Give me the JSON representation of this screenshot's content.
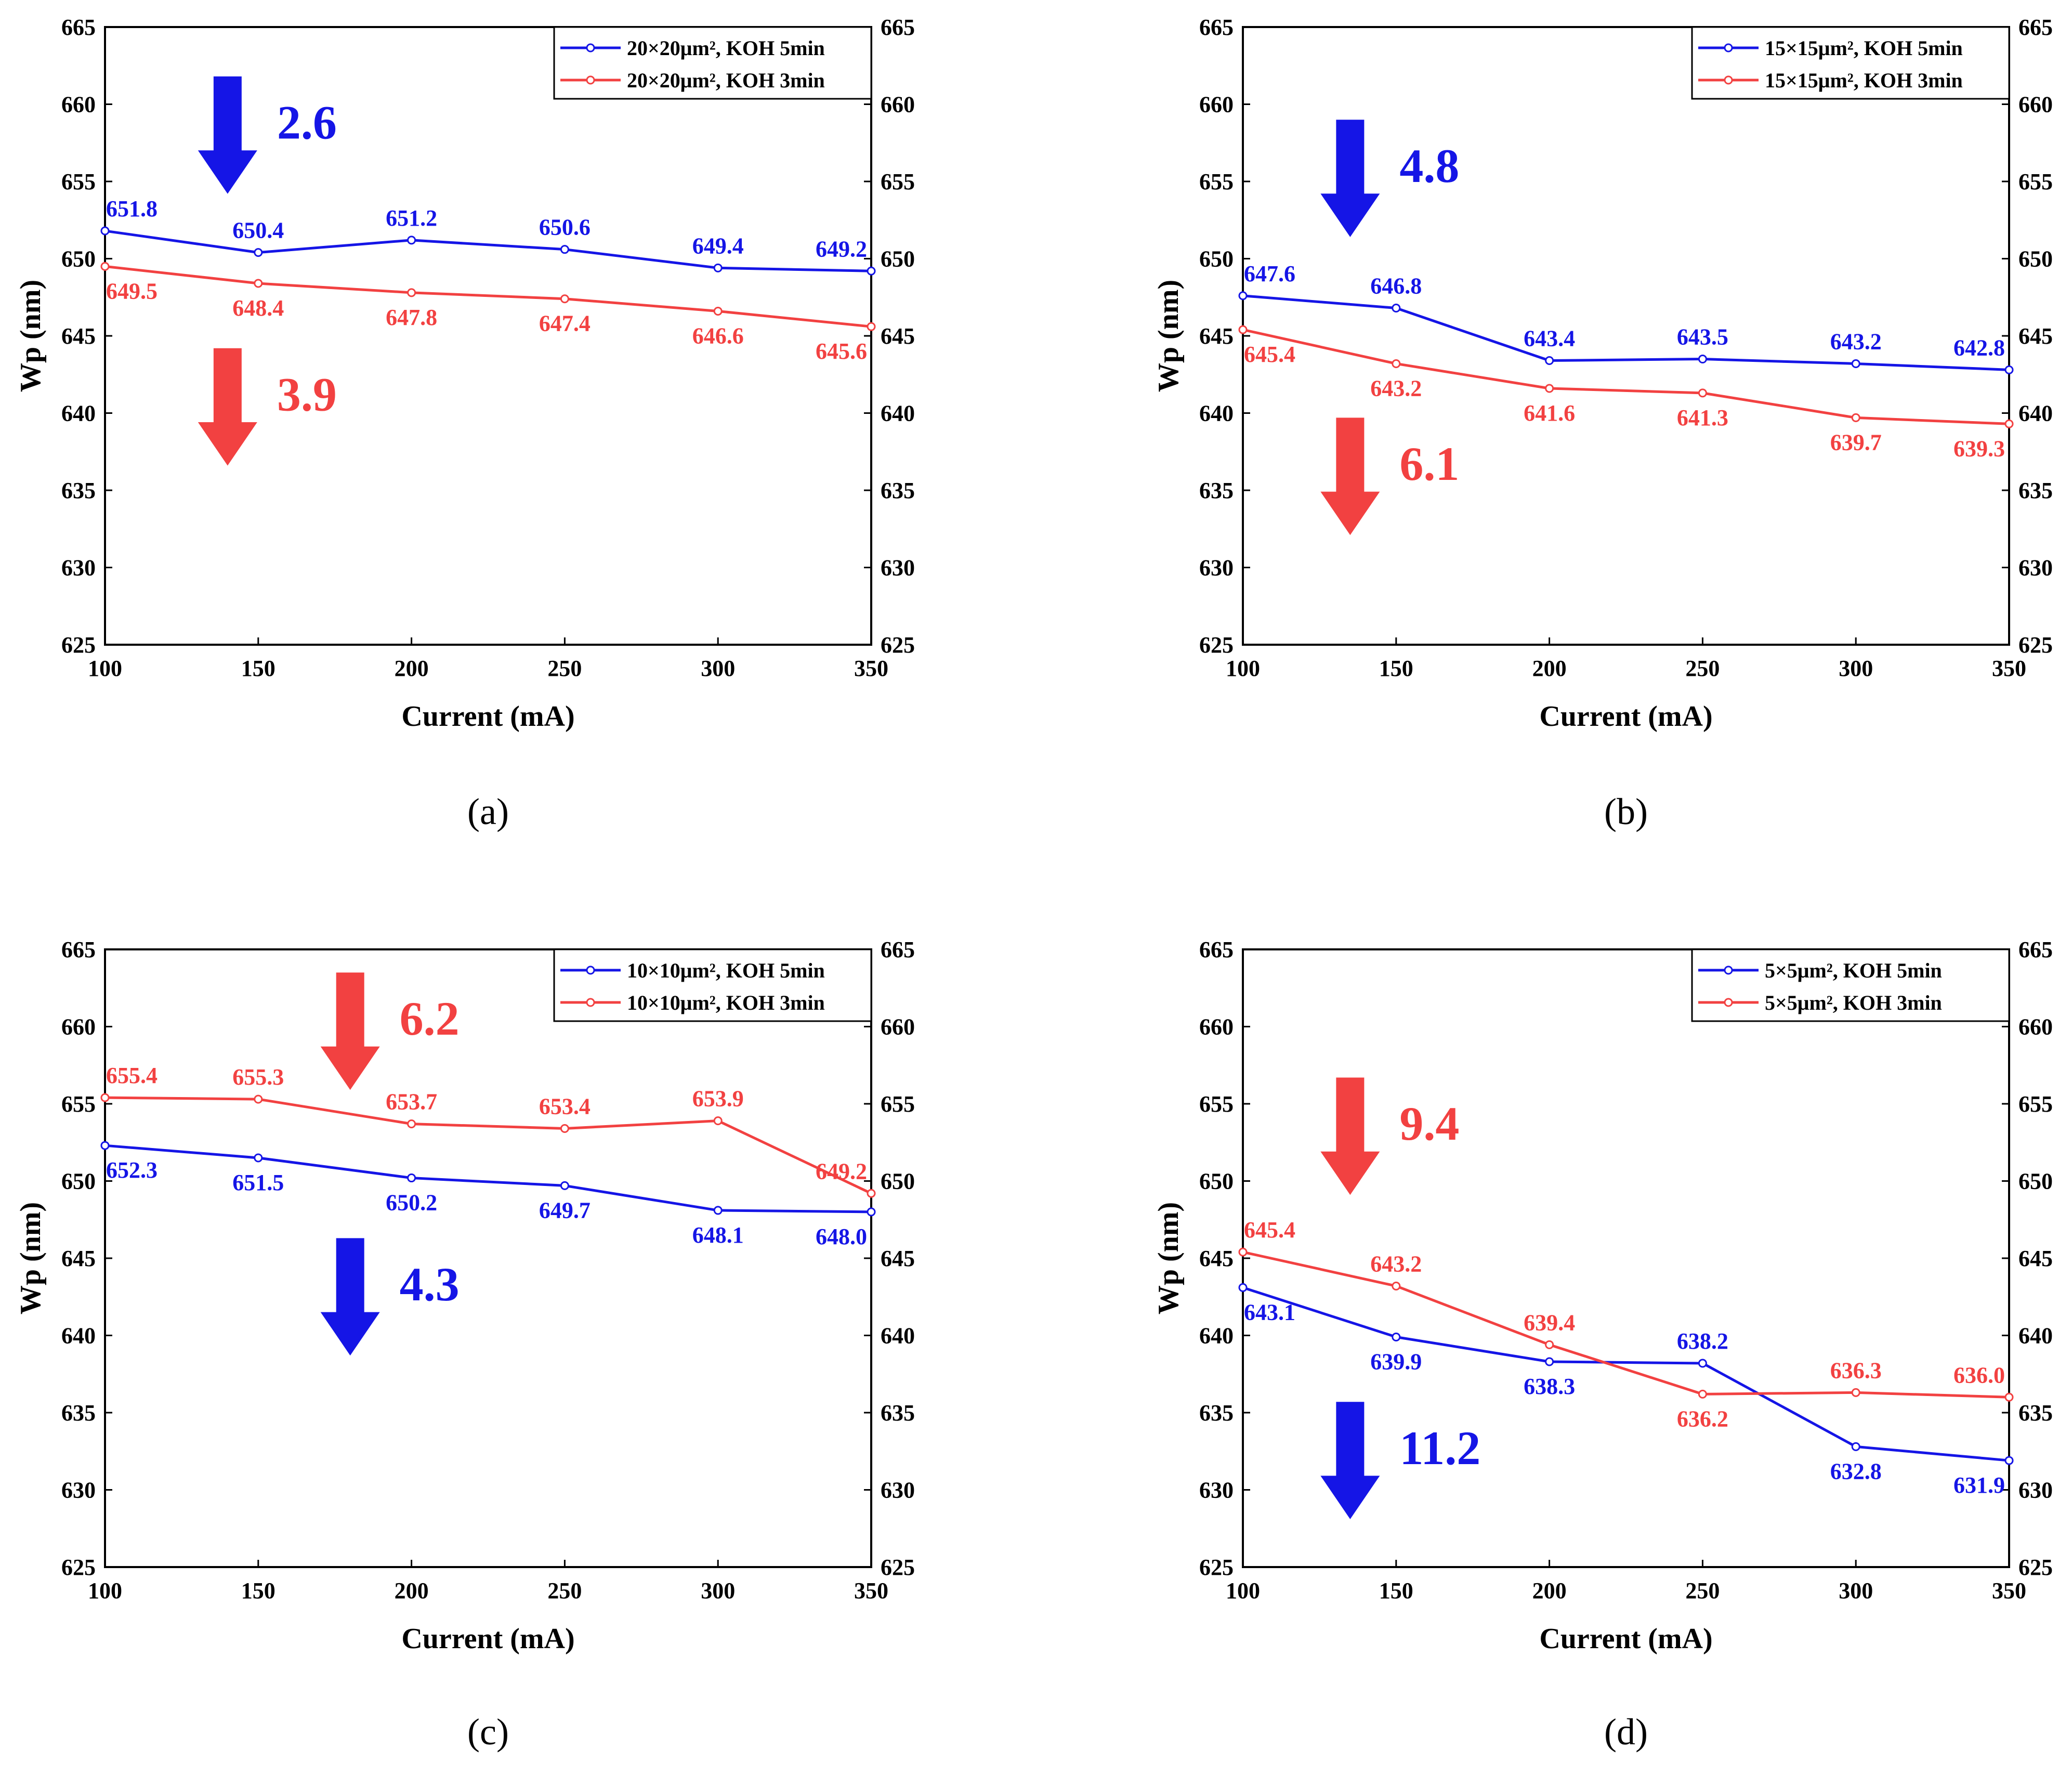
{
  "colors": {
    "blue": "#1515e6",
    "red": "#f24141",
    "axis": "#000000"
  },
  "chart_data": [
    {
      "type": "line",
      "panel_label": "(a)",
      "xlabel": "Current (mA)",
      "ylabel": "Wp (nm)",
      "xlim": [
        100,
        350
      ],
      "ylim": [
        625,
        665
      ],
      "xticks": [
        100,
        150,
        200,
        250,
        300,
        350
      ],
      "yticks": [
        625,
        630,
        635,
        640,
        645,
        650,
        655,
        660,
        665
      ],
      "legend_position": "top-right",
      "x": [
        100,
        150,
        200,
        250,
        300,
        350
      ],
      "series": [
        {
          "name": "20×20μm², KOH 5min",
          "color": "#1515e6",
          "values": [
            651.8,
            650.4,
            651.2,
            650.6,
            649.4,
            649.2
          ],
          "labels": [
            "651.8",
            "650.4",
            "651.2",
            "650.6",
            "649.4",
            "649.2"
          ],
          "label_side": "above"
        },
        {
          "name": "20×20μm², KOH 3min",
          "color": "#f24141",
          "values": [
            649.5,
            648.4,
            647.8,
            647.4,
            646.6,
            645.6
          ],
          "labels": [
            "649.5",
            "648.4",
            "647.8",
            "647.4",
            "646.6",
            "645.6"
          ],
          "label_side": "below"
        }
      ],
      "annotations": [
        {
          "text": "2.6",
          "color": "#1515e6",
          "x": 140,
          "y_top": 661.8,
          "y_bottom": 654.2
        },
        {
          "text": "3.9",
          "color": "#f24141",
          "x": 140,
          "y_top": 644.2,
          "y_bottom": 636.6
        }
      ]
    },
    {
      "type": "line",
      "panel_label": "(b)",
      "xlabel": "Current (mA)",
      "ylabel": "Wp (nm)",
      "xlim": [
        100,
        350
      ],
      "ylim": [
        625,
        665
      ],
      "xticks": [
        100,
        150,
        200,
        250,
        300,
        350
      ],
      "yticks": [
        625,
        630,
        635,
        640,
        645,
        650,
        655,
        660,
        665
      ],
      "legend_position": "top-right",
      "x": [
        100,
        150,
        200,
        250,
        300,
        350
      ],
      "series": [
        {
          "name": "15×15μm², KOH 5min",
          "color": "#1515e6",
          "values": [
            647.6,
            646.8,
            643.4,
            643.5,
            643.2,
            642.8
          ],
          "labels": [
            "647.6",
            "646.8",
            "643.4",
            "643.5",
            "643.2",
            "642.8"
          ],
          "label_side": "above"
        },
        {
          "name": "15×15μm², KOH 3min",
          "color": "#f24141",
          "values": [
            645.4,
            643.2,
            641.6,
            641.3,
            639.7,
            639.3
          ],
          "labels": [
            "645.4",
            "643.2",
            "641.6",
            "641.3",
            "639.7",
            "639.3"
          ],
          "label_side": "below"
        }
      ],
      "annotations": [
        {
          "text": "4.8",
          "color": "#1515e6",
          "x": 135,
          "y_top": 659.0,
          "y_bottom": 651.4
        },
        {
          "text": "6.1",
          "color": "#f24141",
          "x": 135,
          "y_top": 639.7,
          "y_bottom": 632.1
        }
      ]
    },
    {
      "type": "line",
      "panel_label": "(c)",
      "xlabel": "Current (mA)",
      "ylabel": "Wp (nm)",
      "xlim": [
        100,
        350
      ],
      "ylim": [
        625,
        665
      ],
      "xticks": [
        100,
        150,
        200,
        250,
        300,
        350
      ],
      "yticks": [
        625,
        630,
        635,
        640,
        645,
        650,
        655,
        660,
        665
      ],
      "legend_position": "top-right",
      "x": [
        100,
        150,
        200,
        250,
        300,
        350
      ],
      "series": [
        {
          "name": "10×10μm², KOH 5min",
          "color": "#1515e6",
          "values": [
            652.3,
            651.5,
            650.2,
            649.7,
            648.1,
            648.0
          ],
          "labels": [
            "652.3",
            "651.5",
            "650.2",
            "649.7",
            "648.1",
            "648.0"
          ],
          "label_side": "below"
        },
        {
          "name": "10×10μm², KOH 3min",
          "color": "#f24141",
          "values": [
            655.4,
            655.3,
            653.7,
            653.4,
            653.9,
            649.2
          ],
          "labels": [
            "655.4",
            "655.3",
            "653.7",
            "653.4",
            "653.9",
            "649.2"
          ],
          "label_side": "above"
        }
      ],
      "annotations": [
        {
          "text": "6.2",
          "color": "#f24141",
          "x": 180,
          "y_top": 663.5,
          "y_bottom": 655.9
        },
        {
          "text": "4.3",
          "color": "#1515e6",
          "x": 180,
          "y_top": 646.3,
          "y_bottom": 638.7
        }
      ]
    },
    {
      "type": "line",
      "panel_label": "(d)",
      "xlabel": "Current (mA)",
      "ylabel": "Wp (nm)",
      "xlim": [
        100,
        350
      ],
      "ylim": [
        625,
        665
      ],
      "xticks": [
        100,
        150,
        200,
        250,
        300,
        350
      ],
      "yticks": [
        625,
        630,
        635,
        640,
        645,
        650,
        655,
        660,
        665
      ],
      "legend_position": "top-right",
      "x": [
        100,
        150,
        200,
        250,
        300,
        350
      ],
      "series": [
        {
          "name": "5×5μm², KOH 5min",
          "color": "#1515e6",
          "values": [
            643.1,
            639.9,
            638.3,
            638.2,
            632.8,
            631.9
          ],
          "labels": [
            "643.1",
            "639.9",
            "638.3",
            "638.2",
            "632.8",
            "631.9"
          ],
          "label_side": [
            "below",
            "below",
            "below",
            "above",
            "below",
            "below"
          ]
        },
        {
          "name": "5×5μm², KOH 3min",
          "color": "#f24141",
          "values": [
            645.4,
            643.2,
            639.4,
            636.2,
            636.3,
            636.0
          ],
          "labels": [
            "645.4",
            "643.2",
            "639.4",
            "636.2",
            "636.3",
            "636.0"
          ],
          "label_side": [
            "above",
            "above",
            "above",
            "below",
            "above",
            "above"
          ]
        }
      ],
      "annotations": [
        {
          "text": "9.4",
          "color": "#f24141",
          "x": 135,
          "y_top": 656.7,
          "y_bottom": 649.1
        },
        {
          "text": "11.2",
          "color": "#1515e6",
          "x": 135,
          "y_top": 635.7,
          "y_bottom": 628.1
        }
      ]
    }
  ]
}
